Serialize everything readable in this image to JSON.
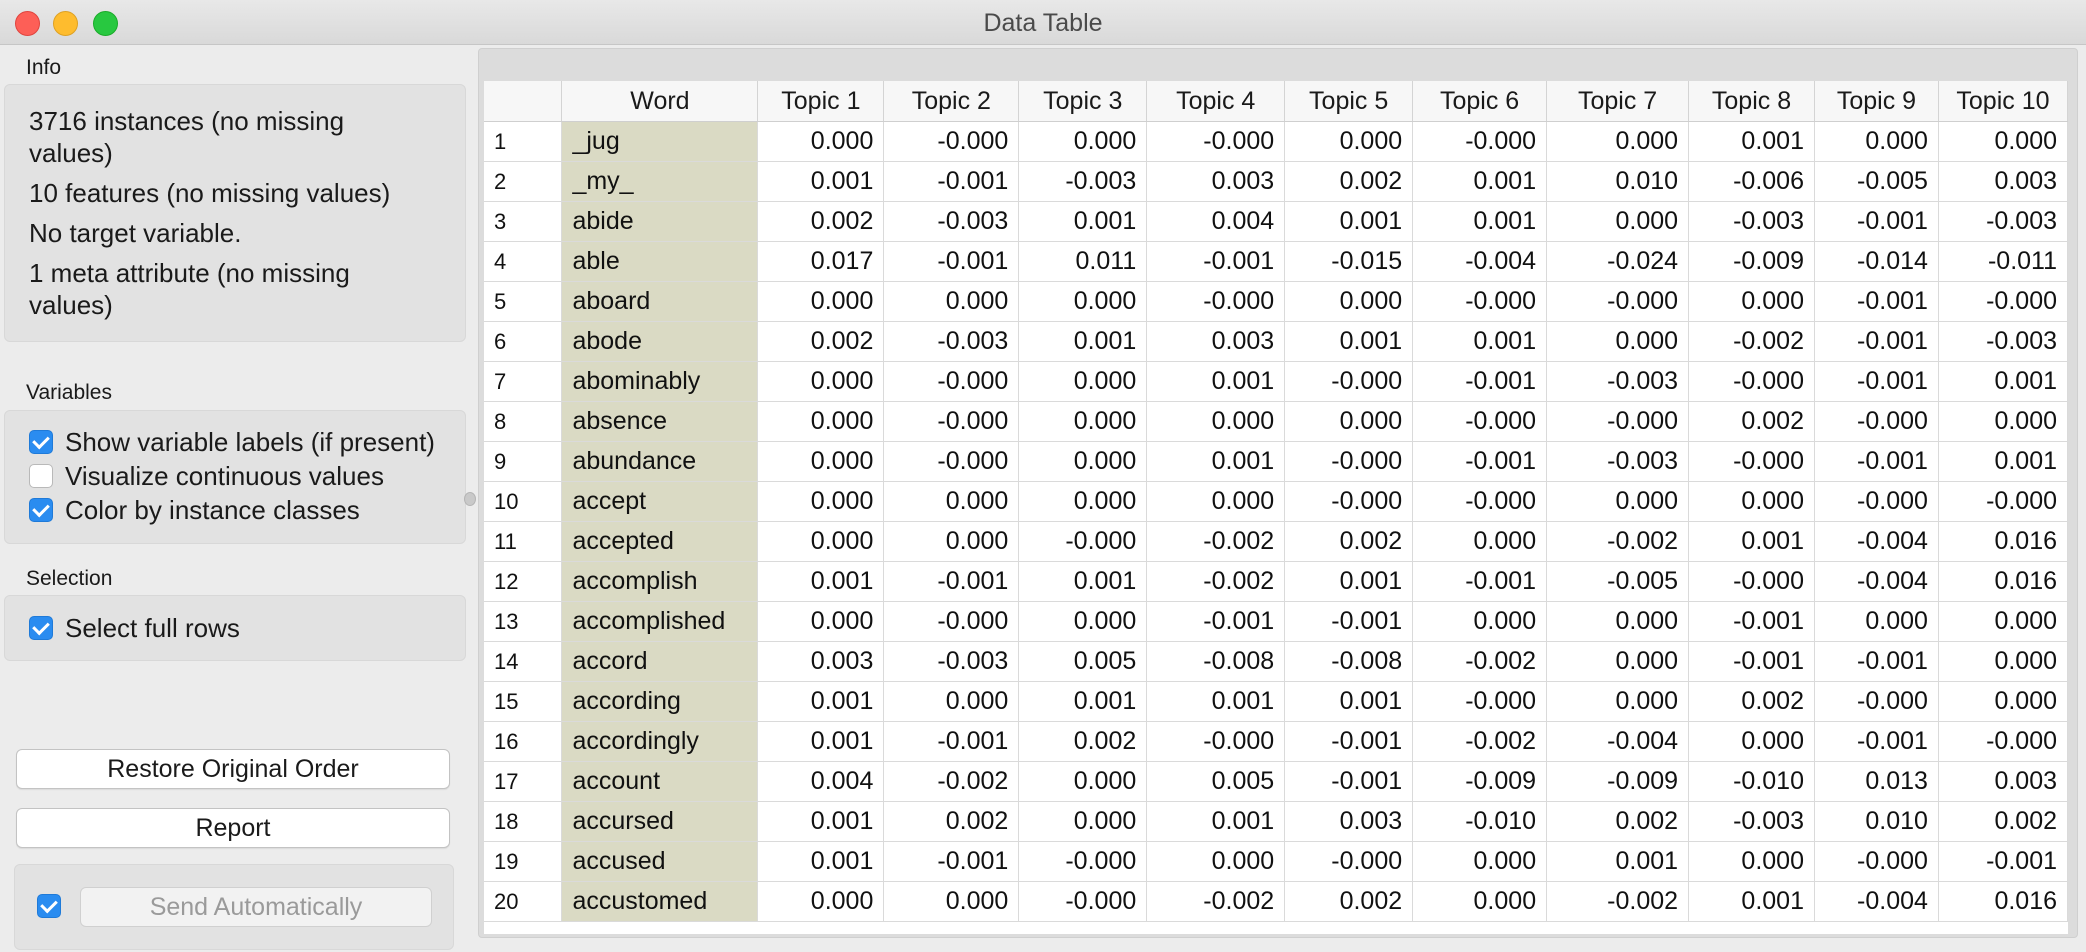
{
  "window": {
    "title": "Data Table"
  },
  "info": {
    "label": "Info",
    "lines": [
      "3716 instances (no missing",
      "values)",
      "10 features (no missing values)",
      "No target variable.",
      "1 meta attribute (no missing",
      "values)"
    ]
  },
  "variables": {
    "label": "Variables",
    "options": [
      {
        "label": "Show variable labels (if present)",
        "checked": true
      },
      {
        "label": "Visualize continuous values",
        "checked": false
      },
      {
        "label": "Color by instance classes",
        "checked": true
      }
    ]
  },
  "selection": {
    "label": "Selection",
    "options": [
      {
        "label": "Select full rows",
        "checked": true
      }
    ]
  },
  "buttons": {
    "restore": "Restore Original Order",
    "report": "Report",
    "send": "Send Automatically",
    "send_checked": true
  },
  "colors": {
    "meta_column": "#dadac4",
    "checkbox_on": "#2a8cf0"
  },
  "table": {
    "columns": [
      "",
      "Word",
      "Topic 1",
      "Topic 2",
      "Topic 3",
      "Topic 4",
      "Topic 5",
      "Topic 6",
      "Topic 7",
      "Topic 8",
      "Topic 9",
      "Topic 10"
    ],
    "rows": [
      [
        "1",
        "_jug",
        "0.000",
        "-0.000",
        "0.000",
        "-0.000",
        "0.000",
        "-0.000",
        "0.000",
        "0.001",
        "0.000",
        "0.000"
      ],
      [
        "2",
        "_my_",
        "0.001",
        "-0.001",
        "-0.003",
        "0.003",
        "0.002",
        "0.001",
        "0.010",
        "-0.006",
        "-0.005",
        "0.003"
      ],
      [
        "3",
        "abide",
        "0.002",
        "-0.003",
        "0.001",
        "0.004",
        "0.001",
        "0.001",
        "0.000",
        "-0.003",
        "-0.001",
        "-0.003"
      ],
      [
        "4",
        "able",
        "0.017",
        "-0.001",
        "0.011",
        "-0.001",
        "-0.015",
        "-0.004",
        "-0.024",
        "-0.009",
        "-0.014",
        "-0.011"
      ],
      [
        "5",
        "aboard",
        "0.000",
        "0.000",
        "0.000",
        "-0.000",
        "0.000",
        "-0.000",
        "-0.000",
        "0.000",
        "-0.001",
        "-0.000"
      ],
      [
        "6",
        "abode",
        "0.002",
        "-0.003",
        "0.001",
        "0.003",
        "0.001",
        "0.001",
        "0.000",
        "-0.002",
        "-0.001",
        "-0.003"
      ],
      [
        "7",
        "abominably",
        "0.000",
        "-0.000",
        "0.000",
        "0.001",
        "-0.000",
        "-0.001",
        "-0.003",
        "-0.000",
        "-0.001",
        "0.001"
      ],
      [
        "8",
        "absence",
        "0.000",
        "-0.000",
        "0.000",
        "0.000",
        "0.000",
        "-0.000",
        "-0.000",
        "0.002",
        "-0.000",
        "0.000"
      ],
      [
        "9",
        "abundance",
        "0.000",
        "-0.000",
        "0.000",
        "0.001",
        "-0.000",
        "-0.001",
        "-0.003",
        "-0.000",
        "-0.001",
        "0.001"
      ],
      [
        "10",
        "accept",
        "0.000",
        "0.000",
        "0.000",
        "0.000",
        "-0.000",
        "-0.000",
        "0.000",
        "0.000",
        "-0.000",
        "-0.000"
      ],
      [
        "11",
        "accepted",
        "0.000",
        "0.000",
        "-0.000",
        "-0.002",
        "0.002",
        "0.000",
        "-0.002",
        "0.001",
        "-0.004",
        "0.016"
      ],
      [
        "12",
        "accomplish",
        "0.001",
        "-0.001",
        "0.001",
        "-0.002",
        "0.001",
        "-0.001",
        "-0.005",
        "-0.000",
        "-0.004",
        "0.016"
      ],
      [
        "13",
        "accomplished",
        "0.000",
        "-0.000",
        "0.000",
        "-0.001",
        "-0.001",
        "0.000",
        "0.000",
        "-0.001",
        "0.000",
        "0.000"
      ],
      [
        "14",
        "accord",
        "0.003",
        "-0.003",
        "0.005",
        "-0.008",
        "-0.008",
        "-0.002",
        "0.000",
        "-0.001",
        "-0.001",
        "0.000"
      ],
      [
        "15",
        "according",
        "0.001",
        "0.000",
        "0.001",
        "0.001",
        "0.001",
        "-0.000",
        "0.000",
        "0.002",
        "-0.000",
        "0.000"
      ],
      [
        "16",
        "accordingly",
        "0.001",
        "-0.001",
        "0.002",
        "-0.000",
        "-0.001",
        "-0.002",
        "-0.004",
        "0.000",
        "-0.001",
        "-0.000"
      ],
      [
        "17",
        "account",
        "0.004",
        "-0.002",
        "0.000",
        "0.005",
        "-0.001",
        "-0.009",
        "-0.009",
        "-0.010",
        "0.013",
        "0.003"
      ],
      [
        "18",
        "accursed",
        "0.001",
        "0.002",
        "0.000",
        "0.001",
        "0.003",
        "-0.010",
        "0.002",
        "-0.003",
        "0.010",
        "0.002"
      ],
      [
        "19",
        "accused",
        "0.001",
        "-0.001",
        "-0.000",
        "0.000",
        "-0.000",
        "0.000",
        "0.001",
        "0.000",
        "-0.000",
        "-0.001"
      ],
      [
        "20",
        "accustomed",
        "0.000",
        "0.000",
        "-0.000",
        "-0.002",
        "0.002",
        "0.000",
        "-0.002",
        "0.001",
        "-0.004",
        "0.016"
      ]
    ]
  }
}
